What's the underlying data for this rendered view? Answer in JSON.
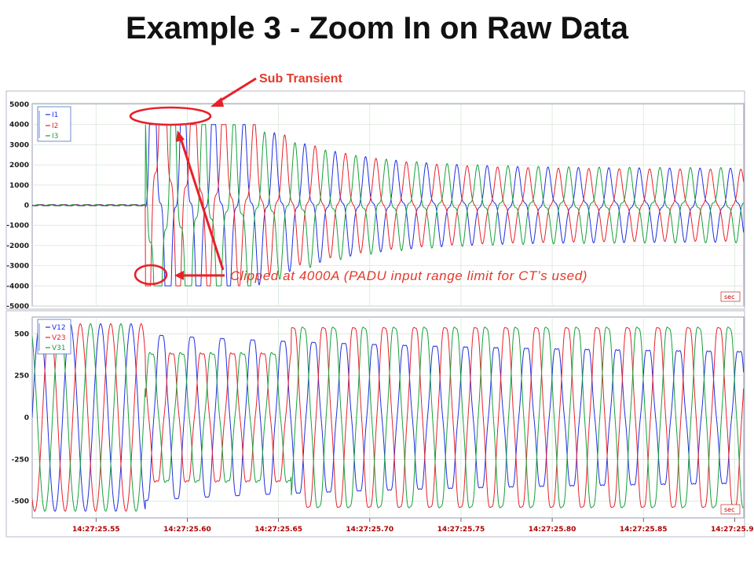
{
  "title": "Example 3 - Zoom In on Raw Data",
  "annotations": {
    "sub_transient": "Sub Transient",
    "clipped": "Clipped at 4000A (PADU input range limit for CT’s used)"
  },
  "colors": {
    "red": "#e8202a",
    "green": "#16a03a",
    "blue": "#1f2ee0",
    "annotation": "#e23a2a",
    "panel_bg": "#eeeef4"
  },
  "unit_badge": "sec",
  "chart_data": [
    {
      "type": "line",
      "panel": "current",
      "ylim": [
        -5000,
        5000
      ],
      "yticks": [
        "5000",
        "4000",
        "3000",
        "2000",
        "1000",
        "0",
        "-1000",
        "-2000",
        "-3000",
        "-4000",
        "-5000"
      ],
      "ytick_values": [
        5000,
        4000,
        3000,
        2000,
        1000,
        0,
        -1000,
        -2000,
        -3000,
        -4000,
        -5000
      ],
      "xlim_seconds": [
        25.515,
        25.905
      ],
      "fault_time": 25.577,
      "clip_limit": 4000,
      "series": [
        {
          "name": "I1",
          "color": "#1f2ee0",
          "phase_deg": 0
        },
        {
          "name": "I2",
          "color": "#e8202a",
          "phase_deg": -120
        },
        {
          "name": "I3",
          "color": "#16a03a",
          "phase_deg": 120
        }
      ]
    },
    {
      "type": "line",
      "panel": "voltage",
      "ylim": [
        -600,
        600
      ],
      "yticks": [
        "500",
        "250",
        "0",
        "-250",
        "-500"
      ],
      "ytick_values": [
        500,
        250,
        0,
        -250,
        -500
      ],
      "xlabels": [
        "14:27:25.55",
        "14:27:25.60",
        "14:27:25.65",
        "14:27:25.70",
        "14:27:25.75",
        "14:27:25.80",
        "14:27:25.85",
        "14:27:25.90"
      ],
      "xvalues": [
        25.55,
        25.6,
        25.65,
        25.7,
        25.75,
        25.8,
        25.85,
        25.9
      ],
      "series": [
        {
          "name": "V12",
          "color": "#1f2ee0",
          "phase_deg": 0
        },
        {
          "name": "V23",
          "color": "#e8202a",
          "phase_deg": -120
        },
        {
          "name": "V31",
          "color": "#16a03a",
          "phase_deg": 120
        }
      ]
    }
  ]
}
